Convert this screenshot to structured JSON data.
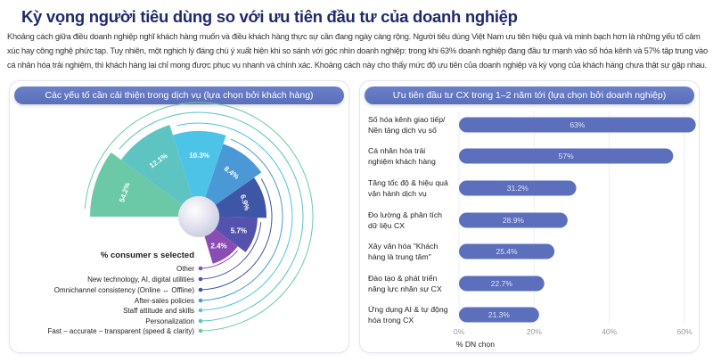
{
  "title": "Kỳ vọng người tiêu dùng so với ưu tiên đầu tư của doanh nghiệp",
  "intro": "Khoảng cách giữa điều doanh nghiệp nghĩ khách hàng muốn và điều khách hàng thực sự cần đang ngày càng rộng. Người tiêu dùng Việt Nam ưu tiên hiệu quả và minh bạch hơn là những yếu tố cảm xúc hay công nghệ phức tạp. Tuy nhiên, một nghịch lý đáng chú ý xuất hiện khi so sánh với góc nhìn doanh nghiệp: trong khi 63% doanh nghiệp đang đầu tư mạnh vào số hóa kênh và 57% tập trung vào cá nhân hóa trải nghiệm, thì khách hàng lại chỉ mong được phục vụ nhanh và chính xác. Khoảng cách này cho thấy mức độ ưu tiên của doanh nghiệp và kỳ vọng của khách hàng chưa thật sự gặp nhau.",
  "chart_data": [
    {
      "type": "radial-bar",
      "title": "Các yếu tố cần cải thiện trong dịch vụ (lựa chọn bởi khách hàng)",
      "legend_title": "% consumer s selected",
      "categories": [
        "Fast – accurate – transparent (speed & clarity)",
        "Personalization",
        "Staff attitude and skills",
        "After-sales policies",
        "Omnichannel consistency (Online ↔ Offline)",
        "New technology, AI, digital utilities",
        "Other"
      ],
      "values": [
        54.2,
        12.1,
        10.3,
        8.4,
        6.9,
        5.7,
        2.4
      ],
      "labels": [
        "54.2%",
        "12.1%",
        "10.3%",
        "8.4%",
        "6.9%",
        "5.7%",
        "2.4%"
      ],
      "colors": [
        "#6cc9a8",
        "#5ec4c2",
        "#4dc3e8",
        "#4a98d6",
        "#3e56a6",
        "#5552ae",
        "#8a4db4"
      ]
    },
    {
      "type": "bar",
      "orientation": "horizontal",
      "title": "Ưu tiên đầu tư CX trong 1–2 năm tới (lựa chọn bởi doanh nghiệp)",
      "categories": [
        [
          "Số hóa kênh giao tiếp/",
          "Nền tảng dịch vụ số"
        ],
        [
          "Cá nhân hóa trải",
          "nghiệm khách hàng"
        ],
        [
          "Tăng tốc độ & hiệu quả",
          "vận hành dịch vụ"
        ],
        [
          "Đo lường & phân tích",
          "dữ liệu CX"
        ],
        [
          "Xây văn hóa \"Khách",
          "hàng là trung tâm\""
        ],
        [
          "Đào tạo & phát triển",
          "năng lực nhân sự CX"
        ],
        [
          "Ứng dụng AI & tự động",
          "hóa trong CX"
        ]
      ],
      "values": [
        63,
        57,
        31.2,
        28.9,
        25.4,
        22.7,
        21.3
      ],
      "labels": [
        "63%",
        "57%",
        "31.2%",
        "28.9%",
        "25.4%",
        "22.7%",
        "21.3%"
      ],
      "xticks": [
        "0%",
        "20%",
        "40%",
        "60%"
      ],
      "xlim": [
        0,
        60
      ],
      "xlabel": "% DN chọn",
      "color": "#5b6fbd"
    }
  ]
}
